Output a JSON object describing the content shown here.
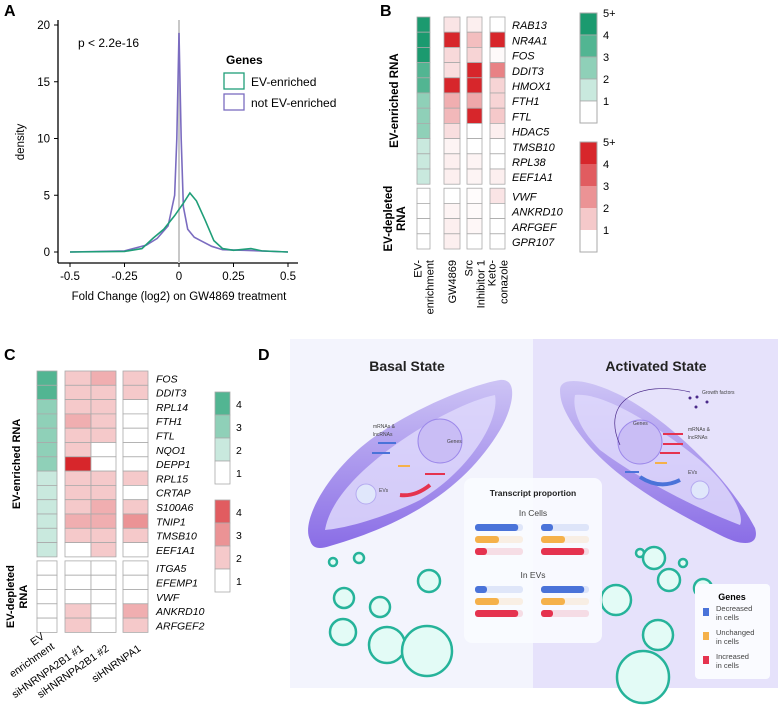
{
  "panels": {
    "a": "A",
    "b": "B",
    "c": "C",
    "d": "D"
  },
  "chart_data": [
    {
      "type": "line",
      "panel": "A",
      "xlabel": "Fold Change (log2) on GW4869 treatment",
      "ylabel": "density",
      "xlim": [
        -0.5,
        0.5
      ],
      "ylim": [
        0,
        20
      ],
      "xticks": [
        "-0.5",
        "-0.25",
        "0",
        "0.25",
        "0.5"
      ],
      "yticks": [
        "0",
        "5",
        "10",
        "15",
        "20"
      ],
      "annotation": "p < 2.2e-16",
      "legend_title": "Genes",
      "legend_position": "top-right",
      "series": [
        {
          "name": "EV-enriched",
          "color": "#1f9e78",
          "x": [
            -0.5,
            -0.25,
            -0.17,
            -0.12,
            -0.07,
            -0.02,
            0.02,
            0.05,
            0.08,
            0.12,
            0.16,
            0.2,
            0.25,
            0.33,
            0.38,
            0.5
          ],
          "y": [
            0,
            0.05,
            0.3,
            1.2,
            2,
            3.2,
            4.3,
            5.2,
            4.5,
            2.8,
            1,
            0.3,
            0.15,
            0.3,
            0.1,
            0
          ]
        },
        {
          "name": "not EV-enriched",
          "color": "#7b6cc0",
          "x": [
            -0.5,
            -0.25,
            -0.15,
            -0.1,
            -0.05,
            -0.02,
            -0.01,
            0,
            0.01,
            0.02,
            0.04,
            0.07,
            0.1,
            0.15,
            0.2,
            0.3,
            0.5
          ],
          "y": [
            0,
            0.1,
            0.6,
            1.2,
            2.3,
            5,
            10,
            19.3,
            10,
            4,
            2,
            1.3,
            1,
            0.5,
            0.2,
            0.15,
            0
          ]
        }
      ]
    },
    {
      "type": "heatmap",
      "panel": "B",
      "group_labels": [
        "EV-enriched RNA",
        "EV-depleted RNA"
      ],
      "columns": [
        "EV-\nenrichment",
        "GW4869",
        "Src\nInhibitor 1",
        "Keto-\nconazole"
      ],
      "rows": [
        "RAB13",
        "NR4A1",
        "FOS",
        "DDIT3",
        "HMOX1",
        "FTH1",
        "FTL",
        "HDAC5",
        "TMSB10",
        "RPL38",
        "EEF1A1",
        "VWF",
        "ANKRD10",
        "ARFGEF",
        "GPR107"
      ],
      "n_enriched": 11,
      "ev_enrichment": [
        5,
        5,
        5,
        4,
        4,
        3,
        3,
        3,
        2,
        2,
        2,
        1,
        1,
        1,
        1
      ],
      "values": [
        [
          1.5,
          1.3,
          1
        ],
        [
          5,
          2.2,
          5
        ],
        [
          1.7,
          1.8,
          1.1
        ],
        [
          1.6,
          5,
          3.3
        ],
        [
          5,
          5,
          1.8
        ],
        [
          2.5,
          2.6,
          1.8
        ],
        [
          2.3,
          5,
          2
        ],
        [
          1.6,
          1,
          1.3
        ],
        [
          1.2,
          1,
          1
        ],
        [
          1.3,
          1.2,
          1
        ],
        [
          1.3,
          1.2,
          1.3
        ],
        [
          1,
          1.05,
          1.5
        ],
        [
          1.2,
          1.1,
          1
        ],
        [
          1.3,
          1.15,
          1
        ],
        [
          1.3,
          1,
          1
        ]
      ],
      "green_legend": [
        "5+",
        "4",
        "3",
        "2",
        "1"
      ],
      "red_legend": [
        "5+",
        "4",
        "3",
        "2",
        "1"
      ]
    },
    {
      "type": "heatmap",
      "panel": "C",
      "group_labels": [
        "EV-enriched RNA",
        "EV-depleted RNA"
      ],
      "columns": [
        "EV\nenrichment",
        "siHNRNPA2B1 #1",
        "siHNRNPA2B1 #2",
        "siHNRNPA1"
      ],
      "rows": [
        "FOS",
        "DDIT3",
        "RPL14",
        "FTH1",
        "FTL",
        "NQO1",
        "DEPP1",
        "RPL15",
        "CRTAP",
        "S100A6",
        "TNIP1",
        "TMSB10",
        "EEF1A1",
        "ITGA5",
        "EFEMP1",
        "VWF",
        "ANKRD10",
        "ARFGEF2"
      ],
      "n_enriched": 13,
      "ev_enrichment": [
        4,
        4,
        3,
        3,
        3,
        3,
        3,
        2,
        2,
        2,
        2,
        2,
        2,
        1,
        1,
        1,
        1,
        1
      ],
      "values": [
        [
          2,
          2.5,
          2
        ],
        [
          2,
          2,
          2
        ],
        [
          2,
          2,
          1
        ],
        [
          2.5,
          2,
          1
        ],
        [
          2,
          2,
          1
        ],
        [
          2,
          1,
          1
        ],
        [
          5,
          1,
          1
        ],
        [
          2,
          2,
          2
        ],
        [
          2,
          2,
          1
        ],
        [
          2,
          2.5,
          2
        ],
        [
          2.5,
          2.5,
          3
        ],
        [
          2,
          2,
          2
        ],
        [
          1,
          2,
          1
        ],
        [
          1,
          1,
          1
        ],
        [
          1,
          1,
          1
        ],
        [
          1,
          1,
          1
        ],
        [
          2,
          1,
          2.5
        ],
        [
          2,
          1,
          2
        ]
      ],
      "green_legend": [
        "4",
        "3",
        "2",
        "1"
      ],
      "red_legend": [
        "4",
        "3",
        "2",
        "1"
      ]
    }
  ],
  "diagram": {
    "basal_title": "Basal State",
    "activated_title": "Activated State",
    "mrnas": "mRNAs &",
    "lncrnas": "lncRNAs",
    "genes": "Genes",
    "evs": "EVs",
    "growth_factors": "Growth factors",
    "transcript_title": "Transcript proportion",
    "in_cells": "In Cells",
    "in_evs": "In EVs",
    "bars": {
      "cells_basal": [
        0.9,
        0.5,
        0.25
      ],
      "cells_activated": [
        0.25,
        0.5,
        0.9
      ],
      "evs_basal": [
        0.25,
        0.5,
        0.9
      ],
      "evs_activated": [
        0.9,
        0.5,
        0.25
      ]
    },
    "legend_title": "Genes",
    "legend": [
      {
        "l1": "Decreased",
        "l2": "in cells",
        "color": "#4a73d9"
      },
      {
        "l1": "Unchanged",
        "l2": "in cells",
        "color": "#f5b14a"
      },
      {
        "l1": "Increased",
        "l2": "in cells",
        "color": "#e5334f"
      }
    ]
  }
}
